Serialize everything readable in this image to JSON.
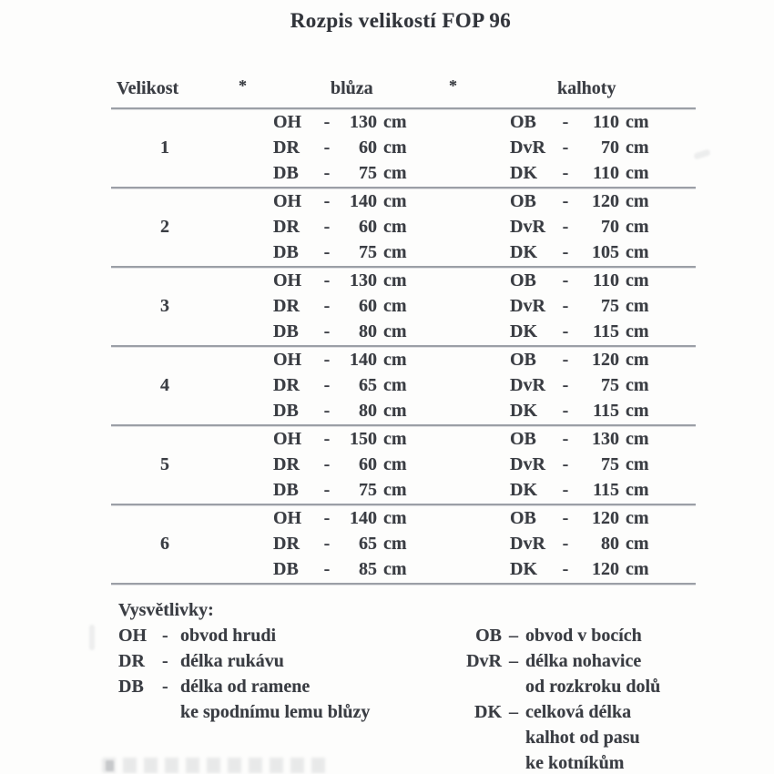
{
  "page": {
    "title": "Rozpis velikostí FOP 96"
  },
  "table": {
    "headers": {
      "size": "Velikost",
      "star1": "*",
      "blouse": "blůza",
      "star2": "*",
      "trousers": "kalhoty"
    },
    "dash": "-",
    "unit": "cm",
    "rows": [
      {
        "size": "1",
        "blouse": [
          {
            "abbr": "OH",
            "value": "130"
          },
          {
            "abbr": "DR",
            "value": "60"
          },
          {
            "abbr": "DB",
            "value": "75"
          }
        ],
        "trousers": [
          {
            "abbr": "OB",
            "value": "110"
          },
          {
            "abbr": "DvR",
            "value": "70"
          },
          {
            "abbr": "DK",
            "value": "110"
          }
        ]
      },
      {
        "size": "2",
        "blouse": [
          {
            "abbr": "OH",
            "value": "140"
          },
          {
            "abbr": "DR",
            "value": "60"
          },
          {
            "abbr": "DB",
            "value": "75"
          }
        ],
        "trousers": [
          {
            "abbr": "OB",
            "value": "120"
          },
          {
            "abbr": "DvR",
            "value": "70"
          },
          {
            "abbr": "DK",
            "value": "105"
          }
        ]
      },
      {
        "size": "3",
        "blouse": [
          {
            "abbr": "OH",
            "value": "130"
          },
          {
            "abbr": "DR",
            "value": "60"
          },
          {
            "abbr": "DB",
            "value": "80"
          }
        ],
        "trousers": [
          {
            "abbr": "OB",
            "value": "110"
          },
          {
            "abbr": "DvR",
            "value": "75"
          },
          {
            "abbr": "DK",
            "value": "115"
          }
        ]
      },
      {
        "size": "4",
        "blouse": [
          {
            "abbr": "OH",
            "value": "140"
          },
          {
            "abbr": "DR",
            "value": "65"
          },
          {
            "abbr": "DB",
            "value": "80"
          }
        ],
        "trousers": [
          {
            "abbr": "OB",
            "value": "120"
          },
          {
            "abbr": "DvR",
            "value": "75"
          },
          {
            "abbr": "DK",
            "value": "115"
          }
        ]
      },
      {
        "size": "5",
        "blouse": [
          {
            "abbr": "OH",
            "value": "150"
          },
          {
            "abbr": "DR",
            "value": "60"
          },
          {
            "abbr": "DB",
            "value": "75"
          }
        ],
        "trousers": [
          {
            "abbr": "OB",
            "value": "130"
          },
          {
            "abbr": "DvR",
            "value": "75"
          },
          {
            "abbr": "DK",
            "value": "115"
          }
        ]
      },
      {
        "size": "6",
        "blouse": [
          {
            "abbr": "OH",
            "value": "140"
          },
          {
            "abbr": "DR",
            "value": "65"
          },
          {
            "abbr": "DB",
            "value": "85"
          }
        ],
        "trousers": [
          {
            "abbr": "OB",
            "value": "120"
          },
          {
            "abbr": "DvR",
            "value": "80"
          },
          {
            "abbr": "DK",
            "value": "120"
          }
        ]
      }
    ]
  },
  "legend": {
    "title": "Vysvětlivky:",
    "left_dash": "-",
    "right_dash": "–",
    "left": [
      {
        "abbr": "OH",
        "lines": [
          "obvod hrudi"
        ]
      },
      {
        "abbr": "DR",
        "lines": [
          "délka rukávu"
        ]
      },
      {
        "abbr": "DB",
        "lines": [
          "délka od ramene",
          "ke spodnímu lemu blůzy"
        ]
      }
    ],
    "right": [
      {
        "abbr": "OB",
        "lines": [
          "obvod v bocích"
        ]
      },
      {
        "abbr": "DvR",
        "lines": [
          "délka nohavice",
          "od rozkroku dolů"
        ]
      },
      {
        "abbr": "DK",
        "lines": [
          "celková délka",
          "kalhot od pasu",
          "ke kotníkům"
        ]
      }
    ]
  }
}
